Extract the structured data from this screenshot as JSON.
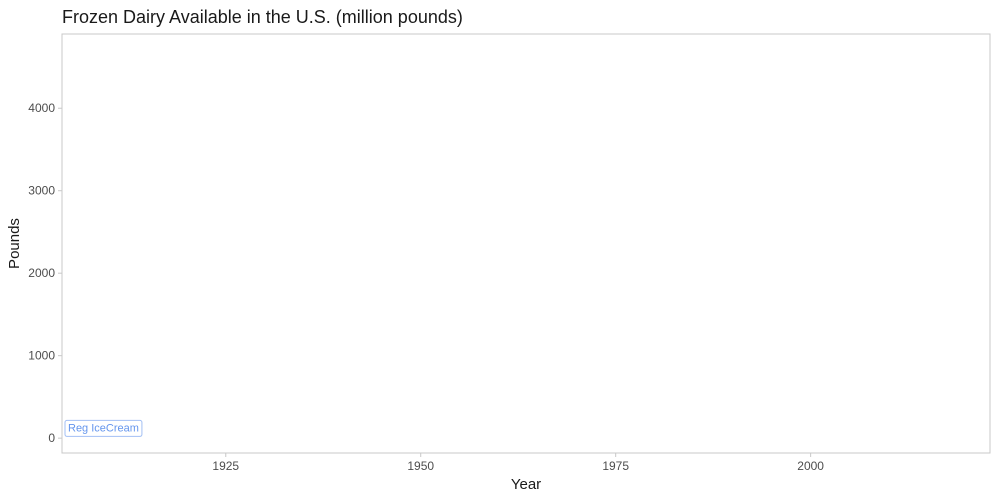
{
  "chart_data": {
    "type": "line",
    "title": "Frozen Dairy Available in the U.S. (million pounds)",
    "xlabel": "Year",
    "ylabel": "Pounds",
    "xlim": [
      1904,
      2023
    ],
    "ylim": [
      -180,
      4900
    ],
    "x_ticks": [
      1925,
      1950,
      1975,
      2000
    ],
    "y_ticks": [
      0,
      1000,
      2000,
      3000,
      4000
    ],
    "grid": false,
    "legend": "none",
    "series": [
      {
        "name": "Reg IceCream",
        "color": "#6495ed",
        "x": [
          1904
        ],
        "y": [
          130
        ]
      }
    ]
  }
}
